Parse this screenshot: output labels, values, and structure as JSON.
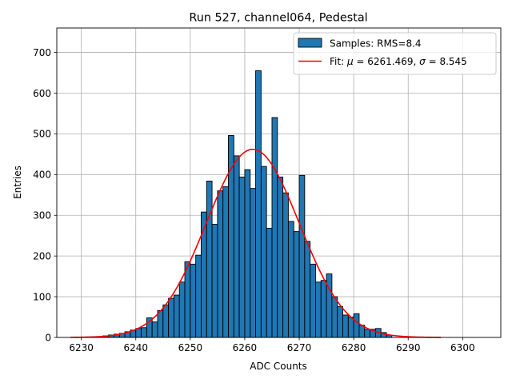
{
  "chart_data": {
    "type": "bar",
    "title": "Run 527, channel064, Pedestal",
    "xlabel": "ADC Counts",
    "ylabel": "Entries",
    "xlim": [
      6225.5,
      6307
    ],
    "ylim": [
      0,
      760
    ],
    "xticks": [
      6230,
      6240,
      6250,
      6260,
      6270,
      6280,
      6290,
      6300
    ],
    "yticks": [
      0,
      100,
      200,
      300,
      400,
      500,
      600,
      700
    ],
    "grid": true,
    "bar_color": "#1f77b4",
    "fit_color": "#ff0000",
    "histogram": {
      "name": "Samples: RMS=8.4",
      "bins": [
        6234,
        6235,
        6236,
        6237,
        6238,
        6239,
        6240,
        6241,
        6242,
        6243,
        6244,
        6245,
        6246,
        6247,
        6248,
        6249,
        6250,
        6251,
        6252,
        6253,
        6254,
        6255,
        6256,
        6257,
        6258,
        6259,
        6260,
        6261,
        6262,
        6263,
        6264,
        6265,
        6266,
        6267,
        6268,
        6269,
        6270,
        6271,
        6272,
        6273,
        6274,
        6275,
        6276,
        6277,
        6278,
        6279,
        6280,
        6281,
        6282,
        6283,
        6284,
        6285,
        6286
      ],
      "counts": [
        4,
        6,
        8,
        10,
        14,
        18,
        22,
        24,
        48,
        38,
        66,
        80,
        96,
        104,
        136,
        186,
        180,
        202,
        308,
        384,
        278,
        360,
        370,
        496,
        446,
        394,
        412,
        366,
        655,
        420,
        268,
        540,
        394,
        355,
        285,
        260,
        398,
        236,
        180,
        136,
        140,
        156,
        100,
        76,
        55,
        50,
        58,
        30,
        20,
        20,
        22,
        12,
        6
      ]
    },
    "fit": {
      "name_prefix": "Fit:",
      "mu_symbol": "μ",
      "mu": 6261.469,
      "sigma_symbol": "σ",
      "sigma": 8.545,
      "amplitude": 462,
      "x_range": [
        6228,
        6296
      ]
    },
    "legend": {
      "position": "top-right",
      "samples_label": "Samples: RMS=8.4",
      "fit_label_prefix": "Fit: ",
      "mu_text": "μ",
      "mu_value_text": " = 6261.469, ",
      "sigma_text": "σ",
      "sigma_value_text": " = 8.545"
    }
  }
}
